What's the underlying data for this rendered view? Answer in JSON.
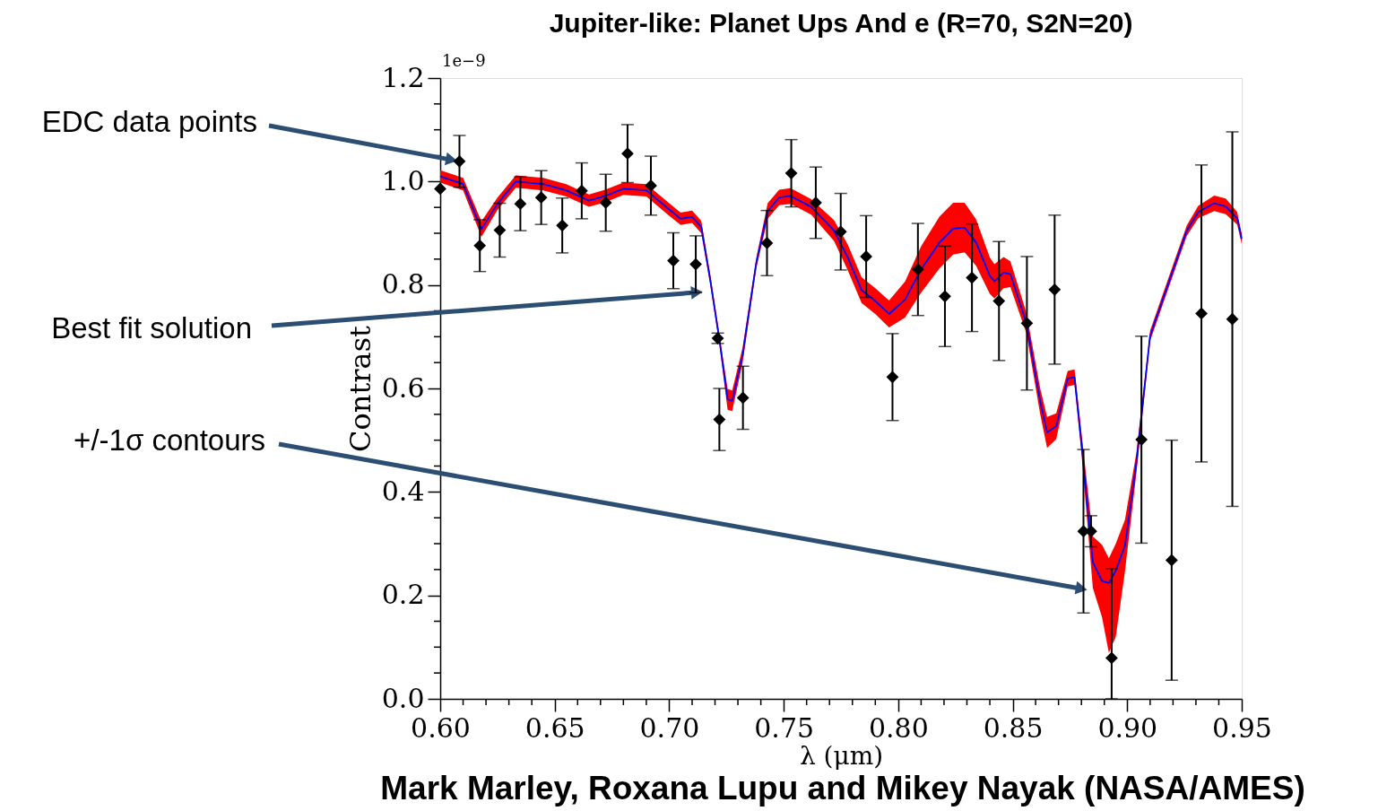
{
  "chart_data": {
    "type": "scatter",
    "title": "Jupiter-like: Planet Ups And e (R=70, S2N=20)",
    "xlabel": "λ (μm)",
    "ylabel": "Contrast",
    "xlim": [
      0.6,
      0.95
    ],
    "ylim": [
      0,
      1.2
    ],
    "xticks": [
      {
        "value": 0.6,
        "label": "0.60"
      },
      {
        "value": 0.61,
        "label": null
      },
      {
        "value": 0.62,
        "label": null
      },
      {
        "value": 0.63,
        "label": null
      },
      {
        "value": 0.64,
        "label": null
      },
      {
        "value": 0.65,
        "label": "0.65"
      },
      {
        "value": 0.66,
        "label": null
      },
      {
        "value": 0.67,
        "label": null
      },
      {
        "value": 0.68,
        "label": null
      },
      {
        "value": 0.69,
        "label": null
      },
      {
        "value": 0.7,
        "label": "0.70"
      },
      {
        "value": 0.71,
        "label": null
      },
      {
        "value": 0.72,
        "label": null
      },
      {
        "value": 0.73,
        "label": null
      },
      {
        "value": 0.74,
        "label": null
      },
      {
        "value": 0.75,
        "label": "0.75"
      },
      {
        "value": 0.76,
        "label": null
      },
      {
        "value": 0.77,
        "label": null
      },
      {
        "value": 0.78,
        "label": null
      },
      {
        "value": 0.79,
        "label": null
      },
      {
        "value": 0.8,
        "label": "0.80"
      },
      {
        "value": 0.81,
        "label": null
      },
      {
        "value": 0.82,
        "label": null
      },
      {
        "value": 0.83,
        "label": null
      },
      {
        "value": 0.84,
        "label": null
      },
      {
        "value": 0.85,
        "label": "0.85"
      },
      {
        "value": 0.86,
        "label": null
      },
      {
        "value": 0.87,
        "label": null
      },
      {
        "value": 0.88,
        "label": null
      },
      {
        "value": 0.89,
        "label": null
      },
      {
        "value": 0.9,
        "label": "0.90"
      },
      {
        "value": 0.91,
        "label": null
      },
      {
        "value": 0.92,
        "label": null
      },
      {
        "value": 0.93,
        "label": null
      },
      {
        "value": 0.94,
        "label": null
      },
      {
        "value": 0.95,
        "label": "0.95"
      }
    ],
    "yticks": [
      {
        "value": 0,
        "label": "0.0"
      },
      {
        "value": 0.05,
        "label": null
      },
      {
        "value": 0.1,
        "label": null
      },
      {
        "value": 0.15,
        "label": null
      },
      {
        "value": 0.2,
        "label": "0.2"
      },
      {
        "value": 0.25,
        "label": null
      },
      {
        "value": 0.3,
        "label": null
      },
      {
        "value": 0.35,
        "label": null
      },
      {
        "value": 0.4,
        "label": "0.4"
      },
      {
        "value": 0.45,
        "label": null
      },
      {
        "value": 0.5,
        "label": null
      },
      {
        "value": 0.55,
        "label": null
      },
      {
        "value": 0.6,
        "label": "0.6"
      },
      {
        "value": 0.65,
        "label": null
      },
      {
        "value": 0.7,
        "label": null
      },
      {
        "value": 0.75,
        "label": null
      },
      {
        "value": 0.8,
        "label": "0.8"
      },
      {
        "value": 0.85,
        "label": null
      },
      {
        "value": 0.9,
        "label": null
      },
      {
        "value": 0.95,
        "label": null
      },
      {
        "value": 1.0,
        "label": "1.0"
      },
      {
        "value": 1.05,
        "label": null
      },
      {
        "value": 1.1,
        "label": null
      },
      {
        "value": 1.15,
        "label": null
      },
      {
        "value": 1.2,
        "label": "1.2"
      }
    ],
    "grid": false,
    "marker": "diamond",
    "annotations": [
      {
        "text": "EDC data points",
        "x": 0.6084,
        "y": 1.039
      },
      {
        "text": "Best fit solution",
        "x": 0.7156,
        "y": 0.787
      },
      {
        "text": "+/-1σ contours",
        "x": 0.8835,
        "y": 0.21
      },
      "Mark Marley, Roxana Lupu and Mikey Nayak (NASA/AMES)",
      "1e−9"
    ],
    "series": [
      {
        "type": "line",
        "color": "#0000ff",
        "marker": "none",
        "line_style": "solid",
        "x": [
          0.6,
          0.61,
          0.618,
          0.625,
          0.633,
          0.645,
          0.655,
          0.665,
          0.672,
          0.68,
          0.69,
          0.7,
          0.705,
          0.71,
          0.714,
          0.718,
          0.722,
          0.7255,
          0.7275,
          0.732,
          0.738,
          0.743,
          0.748,
          0.753,
          0.762,
          0.772,
          0.778,
          0.784,
          0.79,
          0.796,
          0.803,
          0.81,
          0.818,
          0.824,
          0.829,
          0.834,
          0.84,
          0.842,
          0.846,
          0.849,
          0.856,
          0.862,
          0.865,
          0.869,
          0.874,
          0.877,
          0.88,
          0.885,
          0.889,
          0.892,
          0.895,
          0.899,
          0.904,
          0.91,
          0.916,
          0.926,
          0.931,
          0.938,
          0.943,
          0.948,
          0.95
        ],
        "values": [
          1.01,
          0.995,
          0.908,
          0.957,
          1.0,
          0.995,
          0.983,
          0.963,
          0.972,
          0.986,
          0.983,
          0.946,
          0.928,
          0.932,
          0.912,
          0.808,
          0.692,
          0.579,
          0.576,
          0.663,
          0.842,
          0.943,
          0.969,
          0.972,
          0.951,
          0.905,
          0.853,
          0.79,
          0.769,
          0.744,
          0.772,
          0.83,
          0.882,
          0.909,
          0.911,
          0.882,
          0.818,
          0.807,
          0.824,
          0.821,
          0.726,
          0.575,
          0.515,
          0.527,
          0.619,
          0.622,
          0.495,
          0.264,
          0.228,
          0.224,
          0.248,
          0.296,
          0.456,
          0.702,
          0.778,
          0.905,
          0.941,
          0.958,
          0.952,
          0.929,
          0.889
        ],
        "lower": [
          0.998,
          0.983,
          0.893,
          0.945,
          0.988,
          0.983,
          0.971,
          0.951,
          0.96,
          0.974,
          0.971,
          0.934,
          0.916,
          0.92,
          0.9,
          0.798,
          0.682,
          0.559,
          0.556,
          0.648,
          0.832,
          0.928,
          0.954,
          0.957,
          0.936,
          0.885,
          0.828,
          0.765,
          0.744,
          0.718,
          0.737,
          0.785,
          0.832,
          0.859,
          0.863,
          0.837,
          0.783,
          0.774,
          0.794,
          0.796,
          0.706,
          0.55,
          0.485,
          0.502,
          0.604,
          0.607,
          0.475,
          0.214,
          0.158,
          0.089,
          0.12,
          0.246,
          0.436,
          0.692,
          0.768,
          0.895,
          0.929,
          0.943,
          0.937,
          0.917,
          0.879
        ],
        "upper": [
          1.022,
          1.007,
          0.923,
          0.969,
          1.012,
          1.007,
          0.995,
          0.975,
          0.984,
          0.998,
          0.995,
          0.958,
          0.94,
          0.944,
          0.924,
          0.818,
          0.702,
          0.599,
          0.596,
          0.678,
          0.852,
          0.958,
          0.984,
          0.987,
          0.966,
          0.925,
          0.878,
          0.815,
          0.794,
          0.77,
          0.807,
          0.875,
          0.932,
          0.959,
          0.959,
          0.927,
          0.853,
          0.84,
          0.854,
          0.846,
          0.746,
          0.6,
          0.545,
          0.552,
          0.634,
          0.637,
          0.515,
          0.314,
          0.298,
          0.272,
          0.3,
          0.346,
          0.476,
          0.712,
          0.788,
          0.915,
          0.953,
          0.973,
          0.967,
          0.941,
          0.899
        ]
      },
      {
        "color": "#000000",
        "x": [
          0.6,
          0.6084,
          0.6173,
          0.626,
          0.635,
          0.6441,
          0.6533,
          0.6618,
          0.6723,
          0.6818,
          0.692,
          0.7018,
          0.7116,
          0.7212,
          0.7219,
          0.7322,
          0.7427,
          0.7533,
          0.764,
          0.7749,
          0.786,
          0.7975,
          0.8086,
          0.8204,
          0.8322,
          0.844,
          0.8562,
          0.8683,
          0.8809,
          0.8842,
          0.8932,
          0.9062,
          0.9194,
          0.9324,
          0.9459
        ],
        "values": [
          0.986,
          1.039,
          0.876,
          0.906,
          0.957,
          0.969,
          0.915,
          0.982,
          0.959,
          1.054,
          0.992,
          0.847,
          0.84,
          0.697,
          0.54,
          0.582,
          0.881,
          1.016,
          0.959,
          0.903,
          0.855,
          0.622,
          0.83,
          0.778,
          0.814,
          0.769,
          0.726,
          0.791,
          0.324,
          0.324,
          0.079,
          0.501,
          0.268,
          0.745,
          0.734
        ],
        "errors": [
          null,
          0.05,
          0.05,
          0.052,
          0.052,
          0.052,
          0.053,
          0.054,
          0.055,
          0.056,
          0.057,
          0.054,
          0.055,
          0.01,
          0.06,
          0.061,
          0.063,
          0.065,
          0.069,
          0.074,
          0.079,
          0.084,
          0.089,
          0.097,
          0.104,
          0.115,
          0.129,
          0.144,
          0.158,
          0.03,
          [
            0.0,
            0.252
          ],
          0.2,
          0.232,
          0.287,
          0.362
        ]
      }
    ]
  }
}
